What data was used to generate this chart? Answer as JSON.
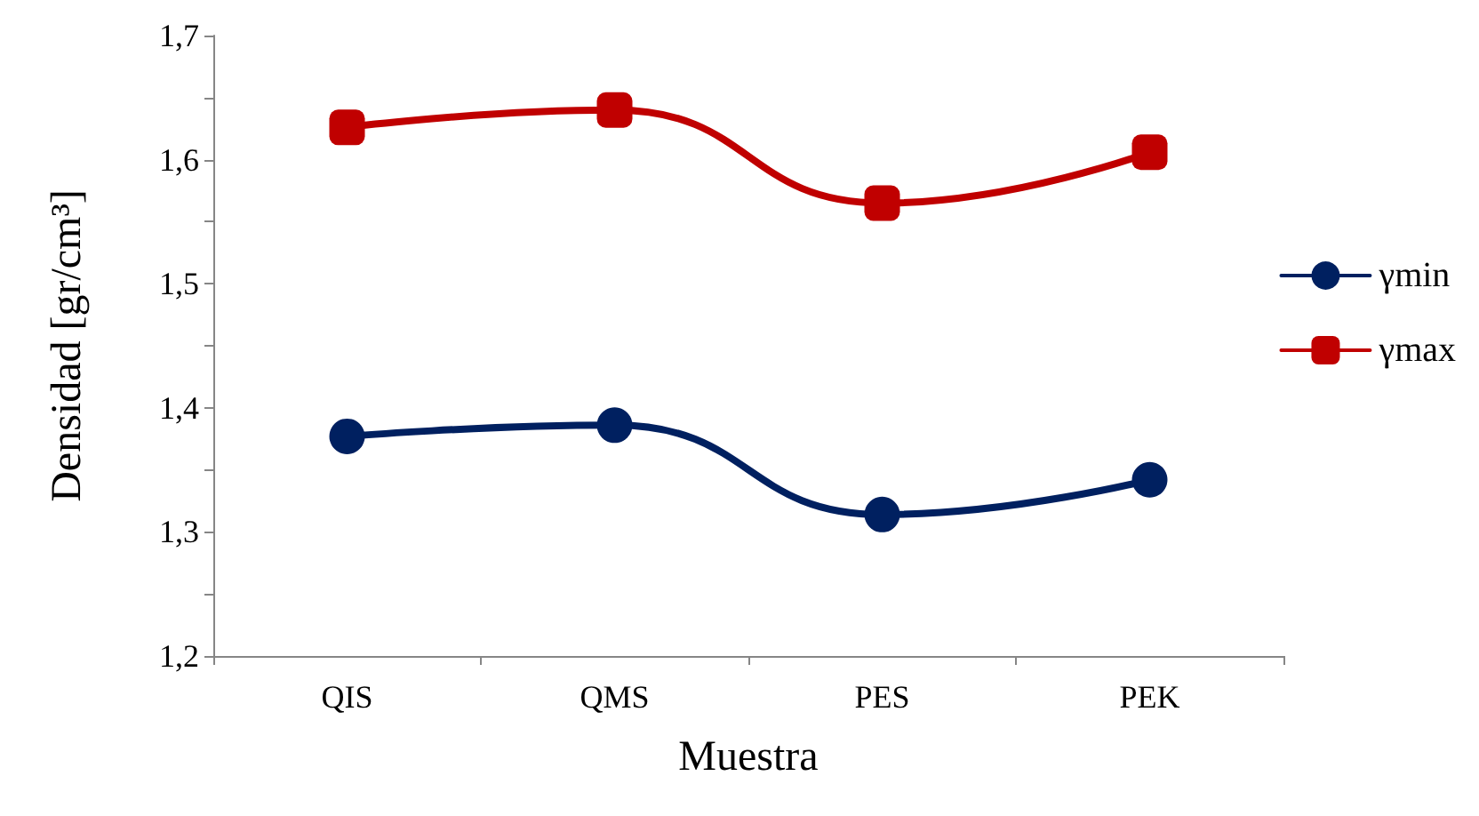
{
  "chart_data": {
    "type": "line",
    "xlabel": "Muestra",
    "ylabel": "Densidad [gr/cm³]",
    "categories": [
      "QIS",
      "QMS",
      "PES",
      "PEK"
    ],
    "series": [
      {
        "name": "γmin",
        "color": "#002060",
        "marker": "circle",
        "values": [
          1.377,
          1.386,
          1.314,
          1.342
        ]
      },
      {
        "name": "γmax",
        "color": "#c00000",
        "marker": "square",
        "values": [
          1.626,
          1.64,
          1.565,
          1.606
        ]
      }
    ],
    "ylim": [
      1.2,
      1.7
    ],
    "yticks": [
      {
        "value": 1.2,
        "label": "1,2"
      },
      {
        "value": 1.25,
        "label": null
      },
      {
        "value": 1.3,
        "label": "1,3"
      },
      {
        "value": 1.35,
        "label": null
      },
      {
        "value": 1.4,
        "label": "1,4"
      },
      {
        "value": 1.45,
        "label": null
      },
      {
        "value": 1.5,
        "label": "1,5"
      },
      {
        "value": 1.55,
        "label": null
      },
      {
        "value": 1.6,
        "label": "1,6"
      },
      {
        "value": 1.65,
        "label": null
      },
      {
        "value": 1.7,
        "label": "1,7"
      }
    ],
    "grid": false,
    "legend": "right",
    "line_style": "solid"
  }
}
